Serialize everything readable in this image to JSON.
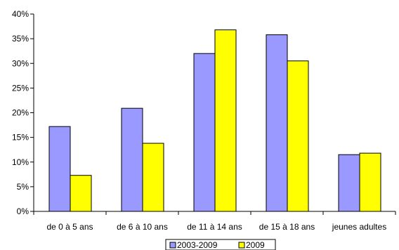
{
  "chart_data": {
    "type": "bar",
    "categories": [
      "de 0 à 5 ans",
      "de 6 à 10 ans",
      "de 11 à 14 ans",
      "de 15 à 18 ans",
      "jeunes adultes"
    ],
    "series": [
      {
        "name": "2003-2009",
        "values": [
          17.2,
          20.9,
          32.0,
          35.8,
          11.5
        ],
        "color": "#9999ff"
      },
      {
        "name": "2009",
        "values": [
          7.3,
          13.8,
          36.8,
          30.5,
          11.8
        ],
        "color": "#ffff00"
      }
    ],
    "y_ticks": [
      "0%",
      "5%",
      "10%",
      "15%",
      "20%",
      "25%",
      "30%",
      "35%",
      "40%"
    ],
    "ylim": [
      0,
      40
    ],
    "y_unit": "percent",
    "grid": false,
    "legend_position": "bottom-center",
    "title": "",
    "xlabel": "",
    "ylabel": ""
  }
}
